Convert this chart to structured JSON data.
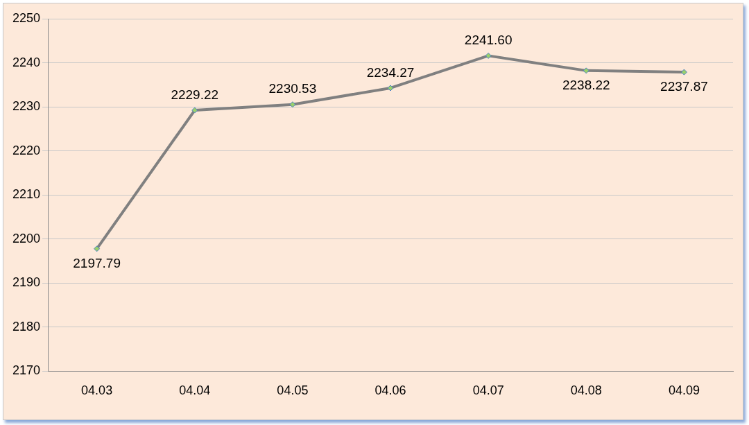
{
  "chart_data": {
    "type": "line",
    "categories": [
      "04.03",
      "04.04",
      "04.05",
      "04.06",
      "04.07",
      "04.08",
      "04.09"
    ],
    "series": [
      {
        "color": "#808080",
        "values": [
          2197.79,
          2229.22,
          2230.53,
          2234.27,
          2241.6,
          2238.22,
          2237.87
        ]
      }
    ],
    "value_labels": [
      "2197.79",
      "2229.22",
      "2230.53",
      "2234.27",
      "2241.60",
      "2238.22",
      "2237.87"
    ],
    "ylim": [
      2170,
      2250
    ],
    "yticks": [
      2170,
      2180,
      2190,
      2200,
      2210,
      2220,
      2230,
      2240,
      2250
    ],
    "grid": "y",
    "legend": false,
    "marker": "diamond"
  }
}
